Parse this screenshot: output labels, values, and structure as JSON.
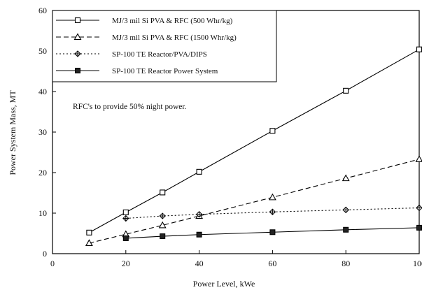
{
  "chart_data": {
    "type": "line",
    "title": "",
    "xlabel": "Power Level, kWe",
    "ylabel": "Power System Mass, MT",
    "xlim": [
      0,
      100
    ],
    "ylim": [
      0,
      60
    ],
    "xticks": [
      0,
      20,
      40,
      60,
      80,
      100
    ],
    "yticks": [
      0,
      10,
      20,
      30,
      40,
      50,
      60
    ],
    "grid": false,
    "legend_position": "top-left",
    "annotation": "RFC's to provide 50% night power.",
    "series": [
      {
        "name": "MJ/3 mil Si PVA & RFC (500 Whr/kg)",
        "marker": "square-open",
        "line_style": "solid",
        "x": [
          10,
          20,
          30,
          40,
          60,
          80,
          100
        ],
        "y": [
          5.2,
          10.2,
          15.1,
          20.2,
          30.3,
          40.2,
          50.4
        ]
      },
      {
        "name": "MJ/3 mil Si PVA & RFC (1500 Whr/kg)",
        "marker": "triangle-open",
        "line_style": "dashed",
        "x": [
          10,
          20,
          30,
          40,
          60,
          80,
          100
        ],
        "y": [
          2.6,
          4.8,
          7.0,
          9.3,
          13.9,
          18.6,
          23.3
        ]
      },
      {
        "name": "SP-100 TE Reactor/PVA/DIPS",
        "marker": "diamond-cross",
        "line_style": "dotted",
        "x": [
          20,
          30,
          40,
          60,
          80,
          100
        ],
        "y": [
          8.7,
          9.3,
          9.7,
          10.3,
          10.8,
          11.3
        ]
      },
      {
        "name": "SP-100 TE Reactor Power System",
        "marker": "square-filled",
        "line_style": "solid",
        "x": [
          20,
          30,
          40,
          60,
          80,
          100
        ],
        "y": [
          3.8,
          4.3,
          4.7,
          5.3,
          5.9,
          6.4
        ]
      }
    ]
  }
}
